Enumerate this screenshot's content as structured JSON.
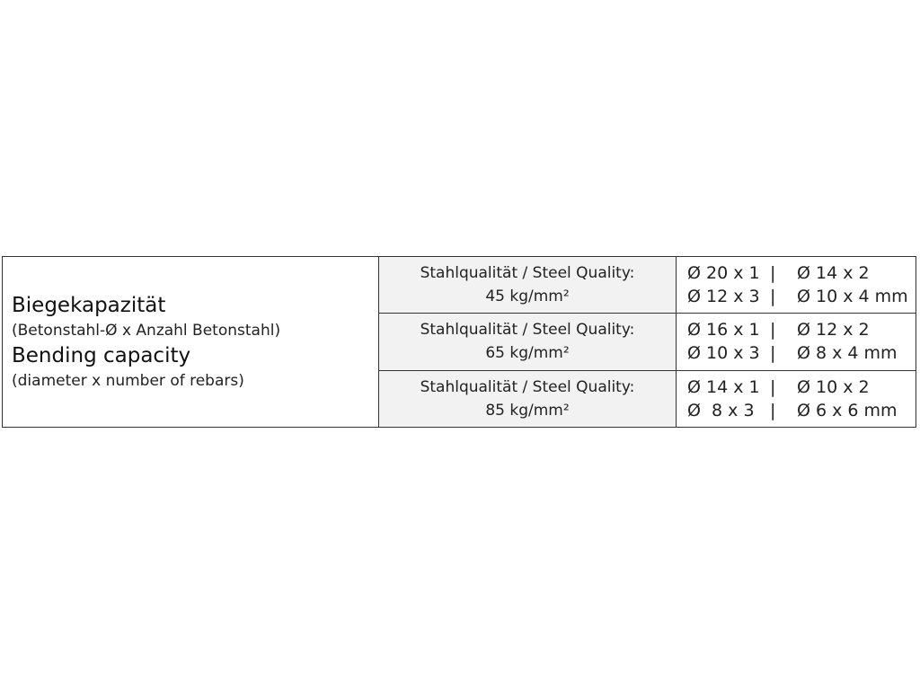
{
  "left": {
    "title_de": "Biegekapazität",
    "subtitle_de": "(Betonstahl-Ø x Anzahl Betonstahl)",
    "title_en": "Bending capacity",
    "subtitle_en": "(diameter x number of rebars)"
  },
  "rows": [
    {
      "quality_label": "Stahlqualität / Steel Quality:",
      "strength": "45 kg/mm²",
      "capacity": [
        [
          "Ø 20 x 1",
          "|",
          "Ø 14 x 2"
        ],
        [
          "Ø 12 x 3",
          "|",
          "Ø 10 x 4 mm"
        ]
      ]
    },
    {
      "quality_label": "Stahlqualität / Steel Quality:",
      "strength": "65 kg/mm²",
      "capacity": [
        [
          "Ø 16 x 1",
          "|",
          "Ø 12 x 2"
        ],
        [
          "Ø 10 x 3",
          "|",
          "Ø 8 x 4 mm"
        ]
      ]
    },
    {
      "quality_label": "Stahlqualität / Steel Quality:",
      "strength": "85 kg/mm²",
      "capacity": [
        [
          "Ø 14 x 1",
          "|",
          "Ø 10 x 2"
        ],
        [
          "Ø  8 x 3",
          "|",
          "Ø 6 x 6 mm"
        ]
      ]
    }
  ]
}
